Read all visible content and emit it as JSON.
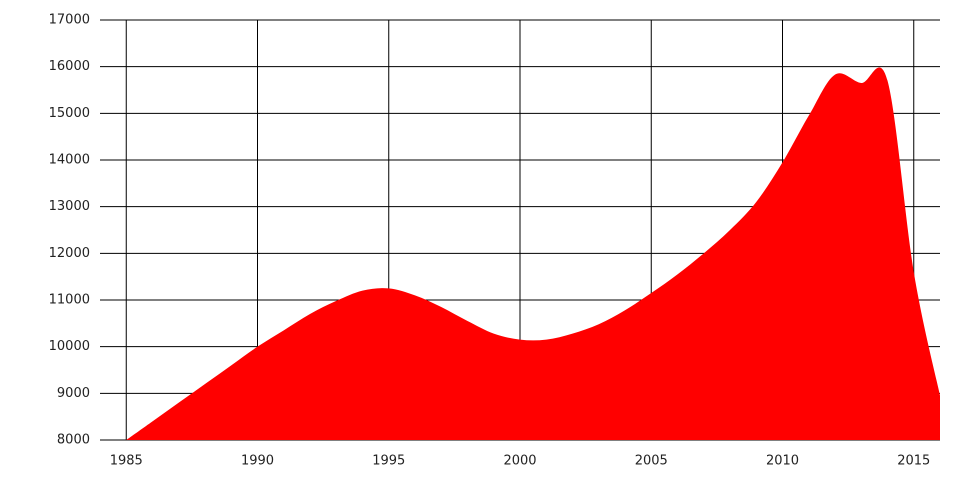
{
  "chart_data": {
    "type": "area",
    "color": "#ff0000",
    "grid": true,
    "x": [
      1985,
      1986,
      1987,
      1988,
      1989,
      1990,
      1991,
      1992,
      1993,
      1994,
      1995,
      1996,
      1997,
      1998,
      1999,
      2000,
      2001,
      2002,
      2003,
      2004,
      2005,
      2006,
      2007,
      2008,
      2009,
      2010,
      2011,
      2012,
      2013,
      2014,
      2015,
      2016
    ],
    "values": [
      8000,
      8400,
      8800,
      9200,
      9600,
      10000,
      10350,
      10700,
      10980,
      11200,
      11250,
      11100,
      10850,
      10550,
      10280,
      10150,
      10150,
      10280,
      10480,
      10780,
      11150,
      11550,
      12000,
      12500,
      13100,
      13950,
      14950,
      15830,
      15650,
      15700,
      11600,
      8950
    ],
    "xlim": [
      1984,
      2016
    ],
    "xticks": [
      1985,
      1990,
      1995,
      2000,
      2005,
      2010,
      2015
    ],
    "ylim": [
      8000,
      17000
    ],
    "yticks": [
      8000,
      9000,
      10000,
      11000,
      12000,
      13000,
      14000,
      15000,
      16000,
      17000
    ]
  }
}
